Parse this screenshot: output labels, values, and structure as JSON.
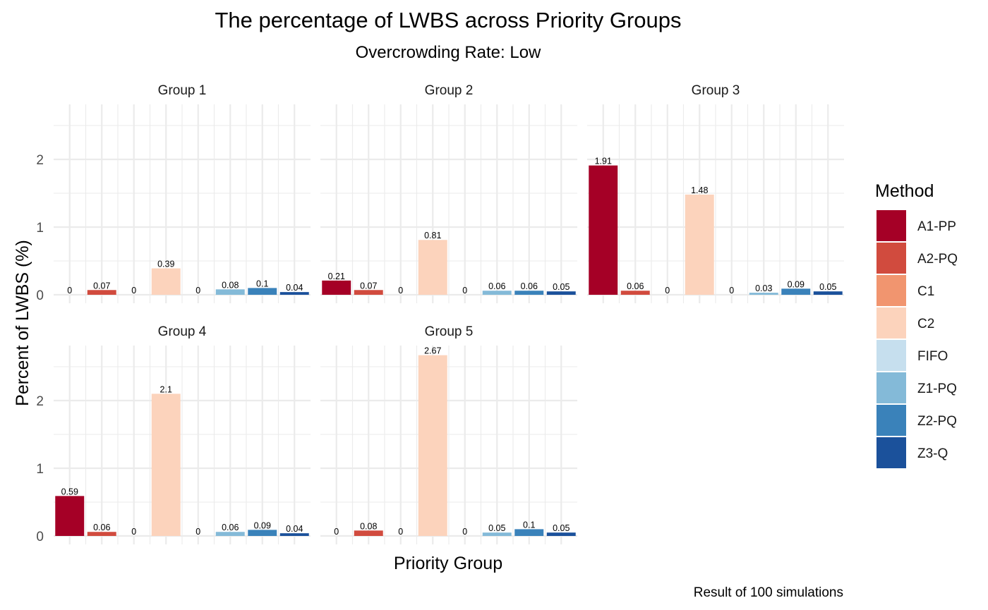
{
  "chart_data": {
    "type": "bar",
    "title": "The percentage of LWBS across Priority Groups",
    "subtitle": "Overcrowding Rate: Low",
    "xlabel": "Priority Group",
    "ylabel": "Percent of LWBS (%)",
    "caption": "Result of 100 simulations",
    "ylim": [
      0,
      2.67
    ],
    "yticks": [
      "0",
      "1",
      "2"
    ],
    "grid": true,
    "legend": {
      "title": "Method",
      "placement": "right"
    },
    "methods": [
      "A1-PP",
      "A2-PQ",
      "C1",
      "C2",
      "FIFO",
      "Z1-PQ",
      "Z2-PQ",
      "Z3-Q"
    ],
    "colors": [
      "#A50026",
      "#D14B3E",
      "#F1956F",
      "#FCD3BC",
      "#C6DFEE",
      "#84BAD8",
      "#3A82BA",
      "#1B519B"
    ],
    "facets": [
      {
        "label": "Group 1",
        "values": [
          0,
          0.07,
          0,
          0.39,
          0,
          0.08,
          0.1,
          0.04
        ],
        "labels": [
          "0",
          "0.07",
          "0",
          "0.39",
          "0",
          "0.08",
          "0.1",
          "0.04"
        ]
      },
      {
        "label": "Group 2",
        "values": [
          0.21,
          0.07,
          0,
          0.81,
          0,
          0.06,
          0.06,
          0.05
        ],
        "labels": [
          "0.21",
          "0.07",
          "0",
          "0.81",
          "0",
          "0.06",
          "0.06",
          "0.05"
        ]
      },
      {
        "label": "Group 3",
        "values": [
          1.91,
          0.06,
          0,
          1.48,
          0,
          0.03,
          0.09,
          0.05
        ],
        "labels": [
          "1.91",
          "0.06",
          "0",
          "1.48",
          "0",
          "0.03",
          "0.09",
          "0.05"
        ]
      },
      {
        "label": "Group 4",
        "values": [
          0.59,
          0.06,
          0,
          2.1,
          0,
          0.06,
          0.09,
          0.04
        ],
        "labels": [
          "0.59",
          "0.06",
          "0",
          "2.1",
          "0",
          "0.06",
          "0.09",
          "0.04"
        ]
      },
      {
        "label": "Group 5",
        "values": [
          0,
          0.08,
          0,
          2.67,
          0,
          0.05,
          0.1,
          0.05
        ],
        "labels": [
          "0",
          "0.08",
          "0",
          "2.67",
          "0",
          "0.05",
          "0.1",
          "0.05"
        ]
      }
    ]
  }
}
